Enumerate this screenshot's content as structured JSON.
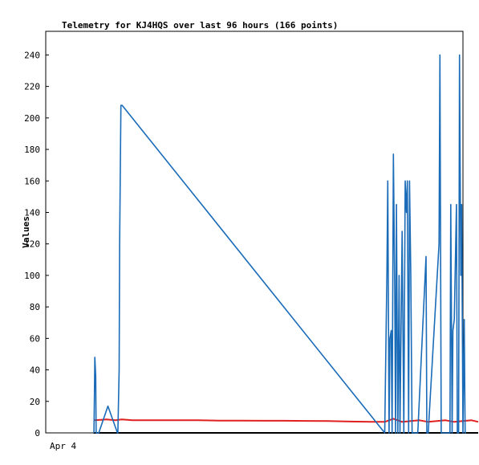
{
  "chart_data": {
    "type": "line",
    "title": "Telemetry for KJ4HQS over last 96 hours (166 points)",
    "ylabel": "Values",
    "xlabel": "",
    "x_tick_labels": [
      "Apr 4"
    ],
    "y_ticks": [
      0,
      20,
      40,
      60,
      80,
      100,
      120,
      140,
      160,
      180,
      200,
      220,
      240
    ],
    "ylim": [
      0,
      255
    ],
    "xlim": [
      0,
      96
    ],
    "grid": false,
    "colors": {
      "series_blue": "#1a6bb8",
      "series_red": "#e02020",
      "series_black": "#000000"
    },
    "series": [
      {
        "name": "",
        "color": "#1a6bb8",
        "x": [
          11.1,
          11.2,
          11.3,
          11.5,
          11.6,
          12.2,
          14.3,
          16.5,
          16.6,
          16.9,
          17.0,
          17.3,
          17.4,
          17.6,
          78.0,
          78.3,
          78.5,
          78.7,
          79.0,
          79.2,
          79.5,
          79.7,
          80.0,
          80.3,
          80.5,
          80.7,
          81.0,
          81.3,
          81.5,
          81.7,
          82.0,
          82.4,
          82.7,
          83.0,
          83.2,
          83.5,
          83.7,
          84.0,
          84.3,
          84.5,
          84.7,
          85.0,
          85.3,
          85.6,
          87.5,
          87.7,
          88.0,
          90.5,
          90.7,
          91.0,
          91.2,
          91.5,
          93.0,
          93.2,
          93.5,
          93.7,
          94.0,
          94.5,
          94.7,
          95.0,
          95.2,
          95.5,
          95.7,
          96.0,
          96.3,
          96.5,
          96.7
        ],
        "values": [
          0,
          25,
          48,
          36,
          0,
          0,
          17,
          0,
          0,
          40,
          120,
          208,
          208,
          208,
          0,
          60,
          100,
          160,
          0,
          60,
          65,
          0,
          177,
          90,
          0,
          145,
          0,
          100,
          0,
          50,
          128,
          0,
          160,
          140,
          160,
          0,
          160,
          100,
          0,
          0,
          0,
          0,
          0,
          0,
          112,
          0,
          0,
          120,
          240,
          0,
          0,
          0,
          0,
          145,
          0,
          65,
          72,
          145,
          0,
          0,
          240,
          100,
          145,
          0,
          72,
          0,
          0
        ]
      },
      {
        "name": "",
        "color": "#e02020",
        "x": [
          11.0,
          14.0,
          16.0,
          17.5,
          20.0,
          25.0,
          30.0,
          35.0,
          40.0,
          45.0,
          50.0,
          55.0,
          60.0,
          65.0,
          70.0,
          75.0,
          78.0,
          80.0,
          82.0,
          84.0,
          86.0,
          88.0,
          90.0,
          92.0,
          94.0,
          96.0,
          98.0,
          99.5
        ],
        "values": [
          8,
          8.5,
          8,
          8.5,
          8,
          8,
          8,
          8,
          7.8,
          7.8,
          7.7,
          7.7,
          7.6,
          7.5,
          7.2,
          7,
          7,
          9,
          7,
          7.5,
          8,
          7,
          7.5,
          8,
          7,
          7.5,
          8,
          7
        ]
      },
      {
        "name": "",
        "color": "#000000",
        "x": [
          11.0,
          99.5
        ],
        "values": [
          0,
          0
        ]
      }
    ]
  }
}
